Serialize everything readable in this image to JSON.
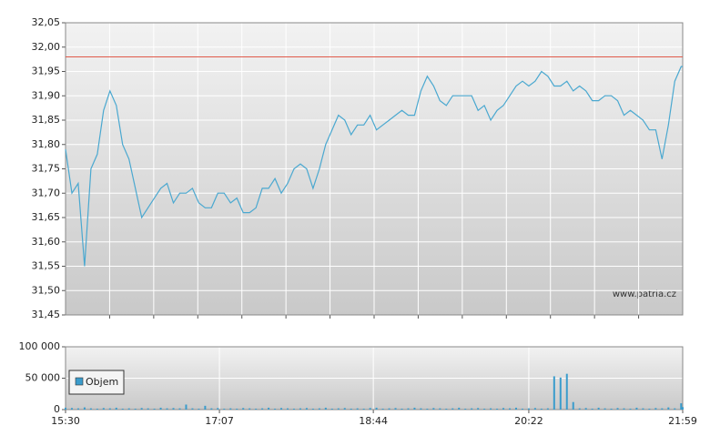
{
  "chart_data": [
    {
      "type": "line",
      "watermark": "www.patria.cz",
      "color": "#4aa8d0",
      "reference_line": 31.98,
      "reference_color": "#e05a4a",
      "xlim": [
        930,
        1319
      ],
      "ylim": [
        31.45,
        32.05
      ],
      "yticks": [
        {
          "value": 31.45,
          "label": "31,45"
        },
        {
          "value": 31.5,
          "label": "31,50"
        },
        {
          "value": 31.55,
          "label": "31,55"
        },
        {
          "value": 31.6,
          "label": "31,60"
        },
        {
          "value": 31.65,
          "label": "31,65"
        },
        {
          "value": 31.7,
          "label": "31,70"
        },
        {
          "value": 31.75,
          "label": "31,75"
        },
        {
          "value": 31.8,
          "label": "31,80"
        },
        {
          "value": 31.85,
          "label": "31,85"
        },
        {
          "value": 31.9,
          "label": "31,90"
        },
        {
          "value": 31.95,
          "label": "31,95"
        },
        {
          "value": 32.0,
          "label": "32,00"
        },
        {
          "value": 32.05,
          "label": "32,05"
        }
      ],
      "grid": true,
      "x": [
        930,
        934,
        938,
        942,
        946,
        950,
        954,
        958,
        962,
        966,
        970,
        974,
        978,
        982,
        986,
        990,
        994,
        998,
        1002,
        1006,
        1010,
        1014,
        1018,
        1022,
        1026,
        1030,
        1034,
        1038,
        1042,
        1046,
        1050,
        1054,
        1058,
        1062,
        1066,
        1070,
        1074,
        1078,
        1082,
        1086,
        1090,
        1094,
        1098,
        1102,
        1106,
        1110,
        1114,
        1118,
        1122,
        1126,
        1130,
        1134,
        1138,
        1142,
        1146,
        1150,
        1154,
        1158,
        1162,
        1166,
        1170,
        1174,
        1178,
        1182,
        1186,
        1190,
        1194,
        1198,
        1202,
        1206,
        1210,
        1214,
        1218,
        1222,
        1226,
        1230,
        1234,
        1238,
        1242,
        1246,
        1250,
        1254,
        1258,
        1262,
        1266,
        1270,
        1274,
        1278,
        1282,
        1286,
        1290,
        1294,
        1298,
        1302,
        1306,
        1310,
        1314,
        1318,
        1319
      ],
      "values": [
        31.79,
        31.7,
        31.72,
        31.55,
        31.75,
        31.78,
        31.87,
        31.91,
        31.88,
        31.8,
        31.77,
        31.71,
        31.65,
        31.67,
        31.69,
        31.71,
        31.72,
        31.68,
        31.7,
        31.7,
        31.71,
        31.68,
        31.67,
        31.67,
        31.7,
        31.7,
        31.68,
        31.69,
        31.66,
        31.66,
        31.67,
        31.71,
        31.71,
        31.73,
        31.7,
        31.72,
        31.75,
        31.76,
        31.75,
        31.71,
        31.75,
        31.8,
        31.83,
        31.86,
        31.85,
        31.82,
        31.84,
        31.84,
        31.86,
        31.83,
        31.84,
        31.85,
        31.86,
        31.87,
        31.86,
        31.86,
        31.91,
        31.94,
        31.92,
        31.89,
        31.88,
        31.9,
        31.9,
        31.9,
        31.9,
        31.87,
        31.88,
        31.85,
        31.87,
        31.88,
        31.9,
        31.92,
        31.93,
        31.92,
        31.93,
        31.95,
        31.94,
        31.92,
        31.92,
        31.93,
        31.91,
        31.92,
        31.91,
        31.89,
        31.89,
        31.9,
        31.9,
        31.89,
        31.86,
        31.87,
        31.86,
        31.85,
        31.83,
        31.83,
        31.77,
        31.84,
        31.93,
        31.96,
        31.96
      ]
    },
    {
      "type": "bar",
      "xlim": [
        930,
        1319
      ],
      "xticks": [
        {
          "value": 930,
          "label": "15:30"
        },
        {
          "value": 1027,
          "label": "17:07"
        },
        {
          "value": 1124,
          "label": "18:44"
        },
        {
          "value": 1222,
          "label": "20:22"
        },
        {
          "value": 1319,
          "label": "21:59"
        }
      ],
      "ylim": [
        0,
        100000
      ],
      "yticks": [
        {
          "value": 0,
          "label": "0"
        },
        {
          "value": 50000,
          "label": "50 000"
        },
        {
          "value": 100000,
          "label": "100 000"
        }
      ],
      "grid": true,
      "x": [
        930,
        934,
        938,
        942,
        946,
        950,
        954,
        958,
        962,
        966,
        970,
        974,
        978,
        982,
        986,
        990,
        994,
        998,
        1002,
        1006,
        1010,
        1014,
        1018,
        1022,
        1026,
        1030,
        1034,
        1038,
        1042,
        1046,
        1050,
        1054,
        1058,
        1062,
        1066,
        1070,
        1074,
        1078,
        1082,
        1086,
        1090,
        1094,
        1098,
        1102,
        1106,
        1110,
        1114,
        1118,
        1122,
        1126,
        1130,
        1134,
        1138,
        1142,
        1146,
        1150,
        1154,
        1158,
        1162,
        1166,
        1170,
        1174,
        1178,
        1182,
        1186,
        1190,
        1194,
        1198,
        1202,
        1206,
        1210,
        1214,
        1218,
        1222,
        1226,
        1230,
        1234,
        1238,
        1242,
        1246,
        1250,
        1254,
        1258,
        1262,
        1266,
        1270,
        1274,
        1278,
        1282,
        1286,
        1290,
        1294,
        1298,
        1302,
        1306,
        1310,
        1314,
        1318,
        1319
      ],
      "series": [
        {
          "name": "Objem",
          "color": "#3a9ccc",
          "values": [
            3000,
            2500,
            2000,
            3500,
            2000,
            1500,
            2500,
            2000,
            3000,
            1500,
            2000,
            1500,
            2500,
            2000,
            1500,
            3000,
            2000,
            2500,
            2000,
            8000,
            2000,
            1500,
            6000,
            2000,
            2500,
            1500,
            2000,
            1500,
            2500,
            2000,
            1500,
            2000,
            3000,
            1500,
            2500,
            2000,
            1500,
            2000,
            2500,
            1500,
            2000,
            3000,
            1500,
            2000,
            2500,
            1500,
            2000,
            1500,
            2500,
            3000,
            1500,
            2000,
            2500,
            1500,
            2000,
            3000,
            2000,
            1500,
            2500,
            2000,
            1500,
            2000,
            3000,
            1500,
            2000,
            2500,
            1500,
            2000,
            1500,
            2500,
            2000,
            3000,
            1500,
            2000,
            2500,
            1500,
            2000,
            53000,
            51000,
            57000,
            12000,
            2000,
            2500,
            1500,
            3000,
            2000,
            1500,
            2500,
            2000,
            1500,
            3000,
            2000,
            1500,
            2500,
            2000,
            3500,
            2000,
            10000,
            4000
          ]
        }
      ]
    }
  ]
}
